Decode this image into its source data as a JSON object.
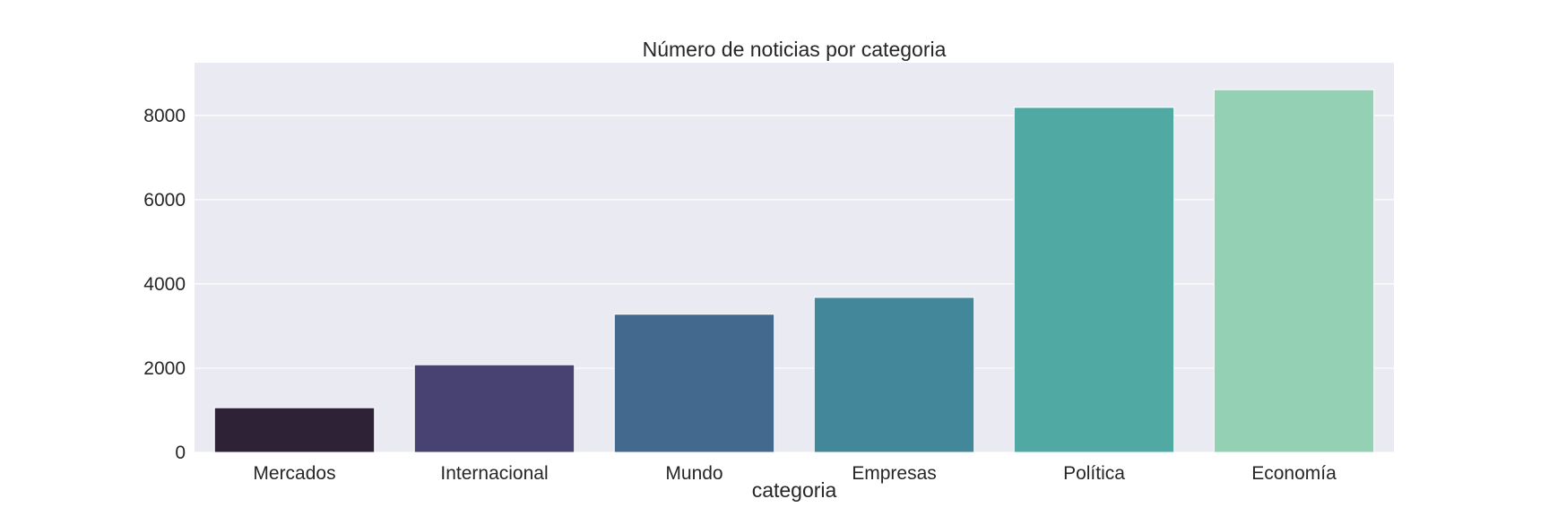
{
  "chart_data": {
    "type": "bar",
    "title": "Número de noticias por categoria",
    "xlabel": "categoria",
    "ylabel": "",
    "categories": [
      "Mercados",
      "Internacional",
      "Mundo",
      "Empresas",
      "Política",
      "Economía"
    ],
    "values": [
      1060,
      2080,
      3280,
      3680,
      8190,
      8610
    ],
    "colors": [
      "#2e2236",
      "#474272",
      "#44698f",
      "#43879a",
      "#50a9a3",
      "#94d0b3"
    ],
    "ylim": [
      0,
      9250
    ],
    "yticks": [
      0,
      2000,
      4000,
      6000,
      8000
    ],
    "ytick_labels": [
      "0",
      "2000",
      "4000",
      "6000",
      "8000"
    ],
    "grid": true,
    "legend": "none",
    "style": {
      "plot_background": "#eaeaf2",
      "grid_color": "#ffffff",
      "bar_edge_color": "#ffffff"
    }
  }
}
